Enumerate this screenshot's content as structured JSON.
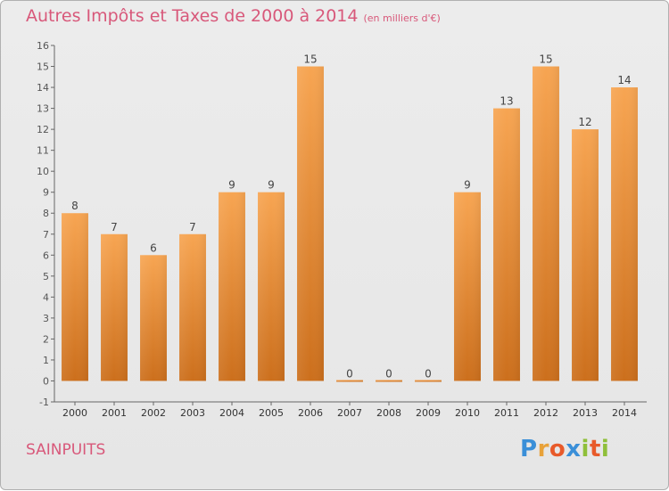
{
  "header": {
    "title": "Autres Impôts et Taxes de 2000 à 2014",
    "subtitle": "(en milliers d'€)"
  },
  "footer": {
    "place": "SAINPUITS",
    "logo_letters": [
      "P",
      "r",
      "o",
      "x",
      "i",
      "t",
      "i"
    ],
    "logo_colors": [
      "#3a8fd8",
      "#e8a23a",
      "#e85a2a",
      "#3a8fd8",
      "#8fbf3a",
      "#e85a2a",
      "#8fbf3a"
    ]
  },
  "colors": {
    "bar_top": "#f7a552",
    "bar_bottom": "#cc6f1c",
    "title": "#d8587a",
    "axis": "#555555"
  },
  "chart_data": {
    "type": "bar",
    "title": "Autres Impôts et Taxes de 2000 à 2014",
    "subtitle": "(en milliers d'€)",
    "categories": [
      "2000",
      "2001",
      "2002",
      "2003",
      "2004",
      "2005",
      "2006",
      "2007",
      "2008",
      "2009",
      "2010",
      "2011",
      "2012",
      "2013",
      "2014"
    ],
    "values": [
      8,
      7,
      6,
      7,
      9,
      9,
      15,
      0,
      0,
      0,
      9,
      13,
      15,
      12,
      14
    ],
    "xlabel": "",
    "ylabel": "",
    "ylim": [
      -1,
      16
    ],
    "yticks": [
      -1,
      0,
      1,
      2,
      3,
      4,
      5,
      6,
      7,
      8,
      9,
      10,
      11,
      12,
      13,
      14,
      15,
      16
    ],
    "grid": false,
    "data_labels": true
  }
}
